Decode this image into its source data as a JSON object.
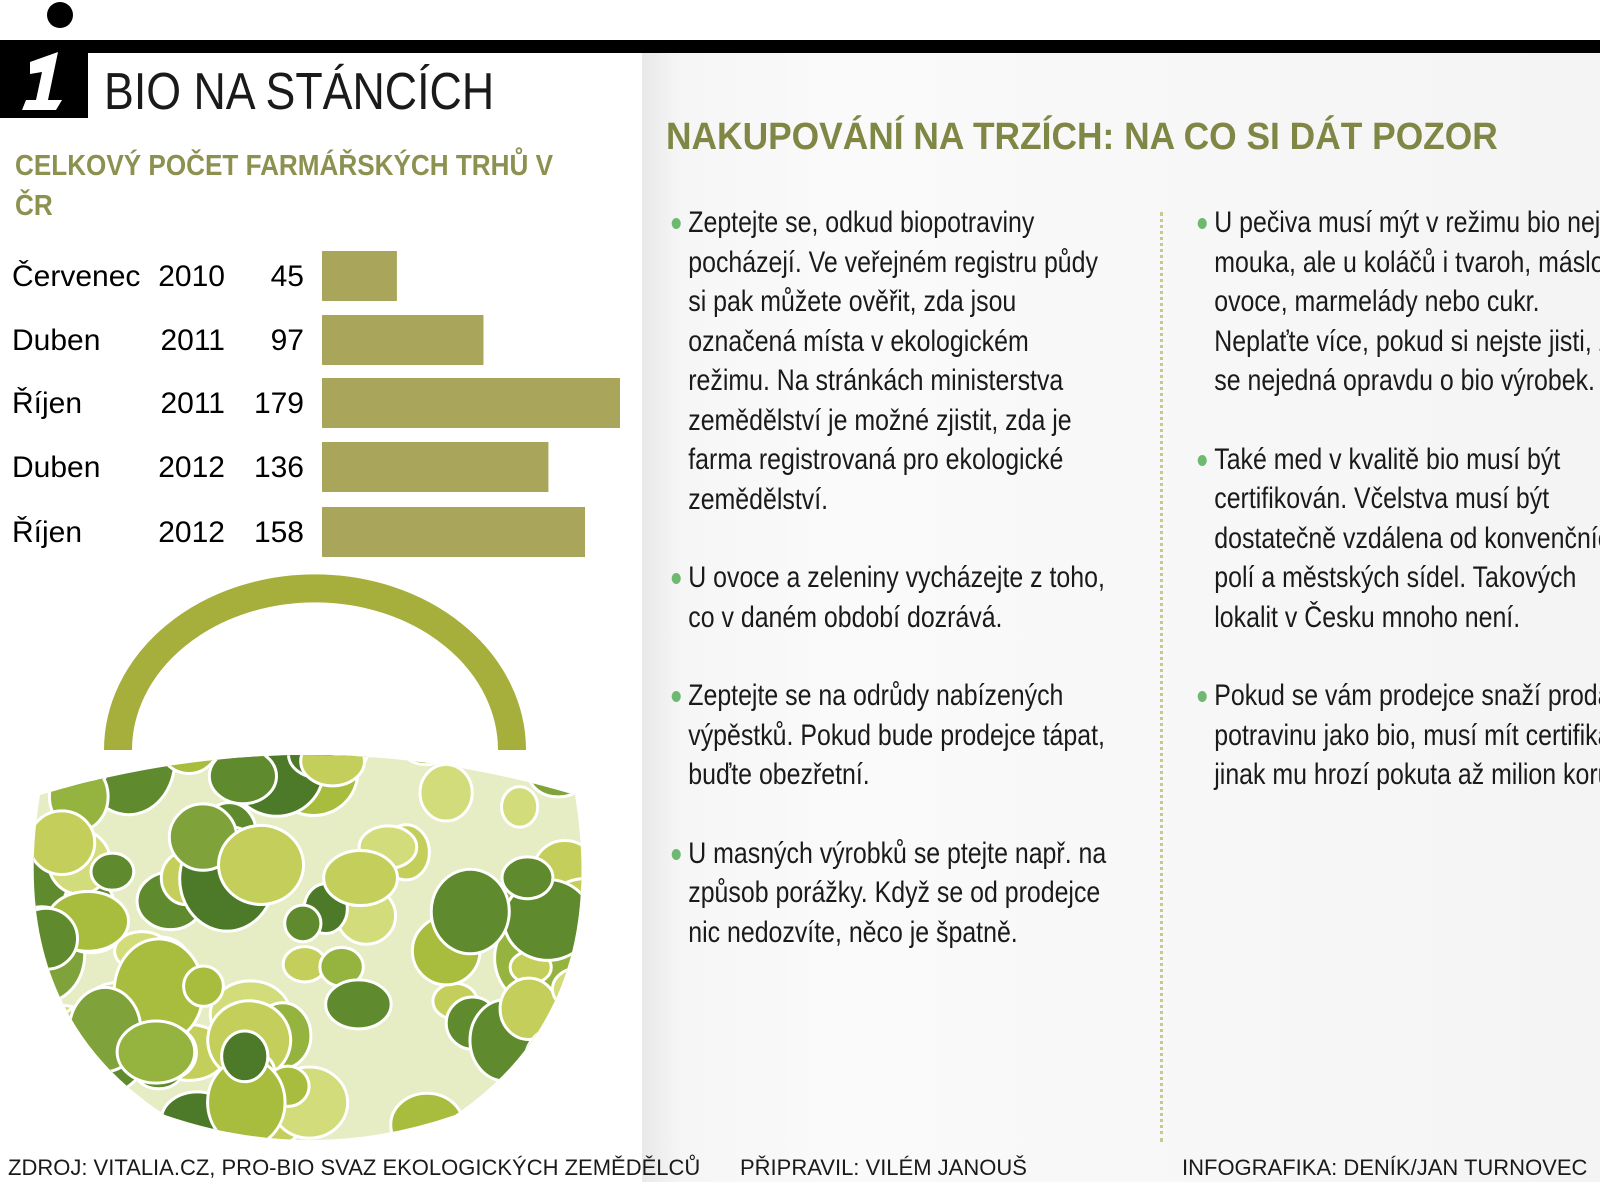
{
  "header": {
    "title": "BIO NA STÁNCÍCH"
  },
  "chart_data": {
    "type": "bar",
    "orientation": "horizontal",
    "title": "CELKOVÝ POČET FARMÁŘSKÝCH TRHŮ V ČR",
    "categories": [
      "Červenec",
      "Duben",
      "Říjen",
      "Duben",
      "Říjen"
    ],
    "years": [
      "2010",
      "2011",
      "2011",
      "2012",
      "2012"
    ],
    "values": [
      45,
      97,
      179,
      136,
      158
    ],
    "color": "#a9a65c"
  },
  "tips": {
    "heading": "NAKUPOVÁNÍ NA TRZÍCH: NA CO SI DÁT POZOR",
    "left": [
      "Zeptejte se, odkud biopotraviny pocházejí. Ve veřejném registru půdy si pak můžete ověřit, zda jsou označená místa v ekologickém režimu. Na stránkách ministerstva zemědělství je možné zjistit, zda je farma registrovaná pro ekologické zemědělství.",
      "U ovoce a zeleniny vycházejte z toho, co v daném období dozrává.",
      "Zeptejte se na odrůdy nabízených výpěstků. Pokud bude prodejce tápat, buďte obezřetní.",
      "U masných výrobků se ptejte např. na způsob porážky. Když se od prodejce nic nedozvíte, něco je špatně."
    ],
    "right": [
      "U pečiva musí mýt v režimu bio nejen mouka, ale u koláčů i tvaroh, máslo, ovoce, marmelády nebo cukr. Neplaťte více, pokud si nejste jisti, že se nejedná opravdu o bio výrobek.",
      "Také med v kvalitě bio musí být certifikován. Včelstva musí být dostatečně vzdálena od konvenčních polí a městských sídel. Takových lokalit v Česku mnoho není.",
      "Pokud se vám prodejce snaží prodat potravinu jako bio, musí mít certifikát, jinak mu hrozí pokuta až milion korun."
    ]
  },
  "footer": {
    "source": "ZDROJ: VITALIA.CZ, PRO-BIO SVAZ EKOLOGICKÝCH ZEMĚDĚLCŮ",
    "prepared": "PŘIPRAVIL: VILÉM JANOUŠ",
    "graphics": "INFOGRAFIKA: DENÍK/JAN TURNOVEC"
  }
}
